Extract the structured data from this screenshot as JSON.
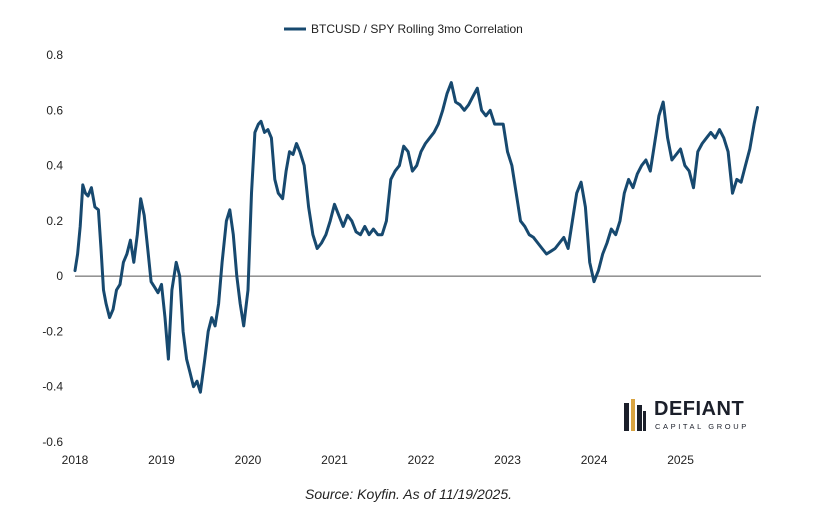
{
  "chart_data": {
    "type": "line",
    "title": "",
    "xlabel": "",
    "ylabel": "",
    "ylim": [
      -0.6,
      0.8
    ],
    "xlim": [
      2018.0,
      2025.93
    ],
    "x_ticks": [
      {
        "value": 2018,
        "label": "2018"
      },
      {
        "value": 2019,
        "label": "2019"
      },
      {
        "value": 2020,
        "label": "2020"
      },
      {
        "value": 2021,
        "label": "2021"
      },
      {
        "value": 2022,
        "label": "2022"
      },
      {
        "value": 2023,
        "label": "2023"
      },
      {
        "value": 2024,
        "label": "2024"
      },
      {
        "value": 2025,
        "label": "2025"
      }
    ],
    "y_ticks": [
      {
        "value": 0.8,
        "label": "0.8"
      },
      {
        "value": 0.6,
        "label": "0.6"
      },
      {
        "value": 0.4,
        "label": "0.4"
      },
      {
        "value": 0.2,
        "label": "0.2"
      },
      {
        "value": 0,
        "label": "0"
      },
      {
        "value": -0.2,
        "label": "-0.2"
      },
      {
        "value": -0.4,
        "label": "-0.4"
      },
      {
        "value": -0.6,
        "label": "-0.6"
      }
    ],
    "zero_line": true,
    "grid": false,
    "legend_position": "top-center",
    "color": "#17496f",
    "series": [
      {
        "name": "BTCUSD / SPY Rolling 3mo Correlation",
        "x": [
          2018.0,
          2018.03,
          2018.06,
          2018.09,
          2018.12,
          2018.15,
          2018.19,
          2018.23,
          2018.27,
          2018.3,
          2018.33,
          2018.36,
          2018.4,
          2018.44,
          2018.48,
          2018.52,
          2018.56,
          2018.6,
          2018.64,
          2018.68,
          2018.72,
          2018.76,
          2018.8,
          2018.84,
          2018.88,
          2018.92,
          2018.96,
          2019.0,
          2019.04,
          2019.08,
          2019.12,
          2019.17,
          2019.21,
          2019.25,
          2019.29,
          2019.33,
          2019.37,
          2019.41,
          2019.45,
          2019.5,
          2019.54,
          2019.58,
          2019.62,
          2019.66,
          2019.7,
          2019.75,
          2019.79,
          2019.83,
          2019.87,
          2019.91,
          2019.95,
          2020.0,
          2020.04,
          2020.08,
          2020.12,
          2020.15,
          2020.19,
          2020.23,
          2020.27,
          2020.31,
          2020.35,
          2020.4,
          2020.44,
          2020.48,
          2020.52,
          2020.56,
          2020.6,
          2020.65,
          2020.7,
          2020.75,
          2020.8,
          2020.85,
          2020.9,
          2020.95,
          2021.0,
          2021.05,
          2021.1,
          2021.15,
          2021.2,
          2021.25,
          2021.3,
          2021.35,
          2021.4,
          2021.45,
          2021.5,
          2021.55,
          2021.6,
          2021.65,
          2021.7,
          2021.75,
          2021.8,
          2021.85,
          2021.9,
          2021.95,
          2022.0,
          2022.05,
          2022.1,
          2022.15,
          2022.2,
          2022.25,
          2022.3,
          2022.35,
          2022.4,
          2022.45,
          2022.5,
          2022.55,
          2022.6,
          2022.65,
          2022.7,
          2022.75,
          2022.8,
          2022.85,
          2022.9,
          2022.95,
          2023.0,
          2023.05,
          2023.1,
          2023.15,
          2023.2,
          2023.25,
          2023.3,
          2023.35,
          2023.4,
          2023.45,
          2023.5,
          2023.55,
          2023.6,
          2023.65,
          2023.7,
          2023.75,
          2023.8,
          2023.85,
          2023.9,
          2023.95,
          2024.0,
          2024.05,
          2024.1,
          2024.15,
          2024.2,
          2024.25,
          2024.3,
          2024.35,
          2024.4,
          2024.45,
          2024.5,
          2024.55,
          2024.6,
          2024.65,
          2024.7,
          2024.75,
          2024.8,
          2024.85,
          2024.9,
          2024.95,
          2025.0,
          2025.05,
          2025.1,
          2025.15,
          2025.2,
          2025.25,
          2025.3,
          2025.35,
          2025.4,
          2025.45,
          2025.5,
          2025.55,
          2025.6,
          2025.65,
          2025.7,
          2025.75,
          2025.8,
          2025.85,
          2025.89
        ],
        "y": [
          0.02,
          0.08,
          0.18,
          0.33,
          0.3,
          0.29,
          0.32,
          0.25,
          0.24,
          0.1,
          -0.05,
          -0.1,
          -0.15,
          -0.12,
          -0.05,
          -0.03,
          0.05,
          0.08,
          0.13,
          0.05,
          0.15,
          0.28,
          0.22,
          0.1,
          -0.02,
          -0.04,
          -0.06,
          -0.03,
          -0.15,
          -0.3,
          -0.05,
          0.05,
          0.0,
          -0.2,
          -0.3,
          -0.35,
          -0.4,
          -0.38,
          -0.42,
          -0.3,
          -0.2,
          -0.15,
          -0.18,
          -0.1,
          0.05,
          0.2,
          0.24,
          0.15,
          0.0,
          -0.1,
          -0.18,
          -0.05,
          0.3,
          0.52,
          0.55,
          0.56,
          0.52,
          0.53,
          0.5,
          0.35,
          0.3,
          0.28,
          0.38,
          0.45,
          0.44,
          0.48,
          0.45,
          0.4,
          0.25,
          0.15,
          0.1,
          0.12,
          0.15,
          0.2,
          0.26,
          0.22,
          0.18,
          0.22,
          0.2,
          0.16,
          0.15,
          0.18,
          0.15,
          0.17,
          0.15,
          0.15,
          0.2,
          0.35,
          0.38,
          0.4,
          0.47,
          0.45,
          0.38,
          0.4,
          0.45,
          0.48,
          0.5,
          0.52,
          0.55,
          0.6,
          0.66,
          0.7,
          0.63,
          0.62,
          0.6,
          0.62,
          0.65,
          0.68,
          0.6,
          0.58,
          0.6,
          0.55,
          0.55,
          0.55,
          0.45,
          0.4,
          0.3,
          0.2,
          0.18,
          0.15,
          0.14,
          0.12,
          0.1,
          0.08,
          0.09,
          0.1,
          0.12,
          0.14,
          0.1,
          0.2,
          0.3,
          0.34,
          0.25,
          0.05,
          -0.02,
          0.02,
          0.08,
          0.12,
          0.17,
          0.15,
          0.2,
          0.3,
          0.35,
          0.32,
          0.37,
          0.4,
          0.42,
          0.38,
          0.48,
          0.58,
          0.63,
          0.5,
          0.42,
          0.44,
          0.46,
          0.4,
          0.38,
          0.32,
          0.45,
          0.48,
          0.5,
          0.52,
          0.5,
          0.53,
          0.5,
          0.45,
          0.3,
          0.35,
          0.34,
          0.4,
          0.46,
          0.55,
          0.61
        ]
      }
    ]
  },
  "source_text": "Source: Koyfin. As of 11/19/2025.",
  "logo": {
    "name": "DEFIANT",
    "tagline": "CAPITAL GROUP",
    "mark": "building-mark-icon",
    "mark_color": "#1b1f2a",
    "accent_color": "#d9a441"
  }
}
